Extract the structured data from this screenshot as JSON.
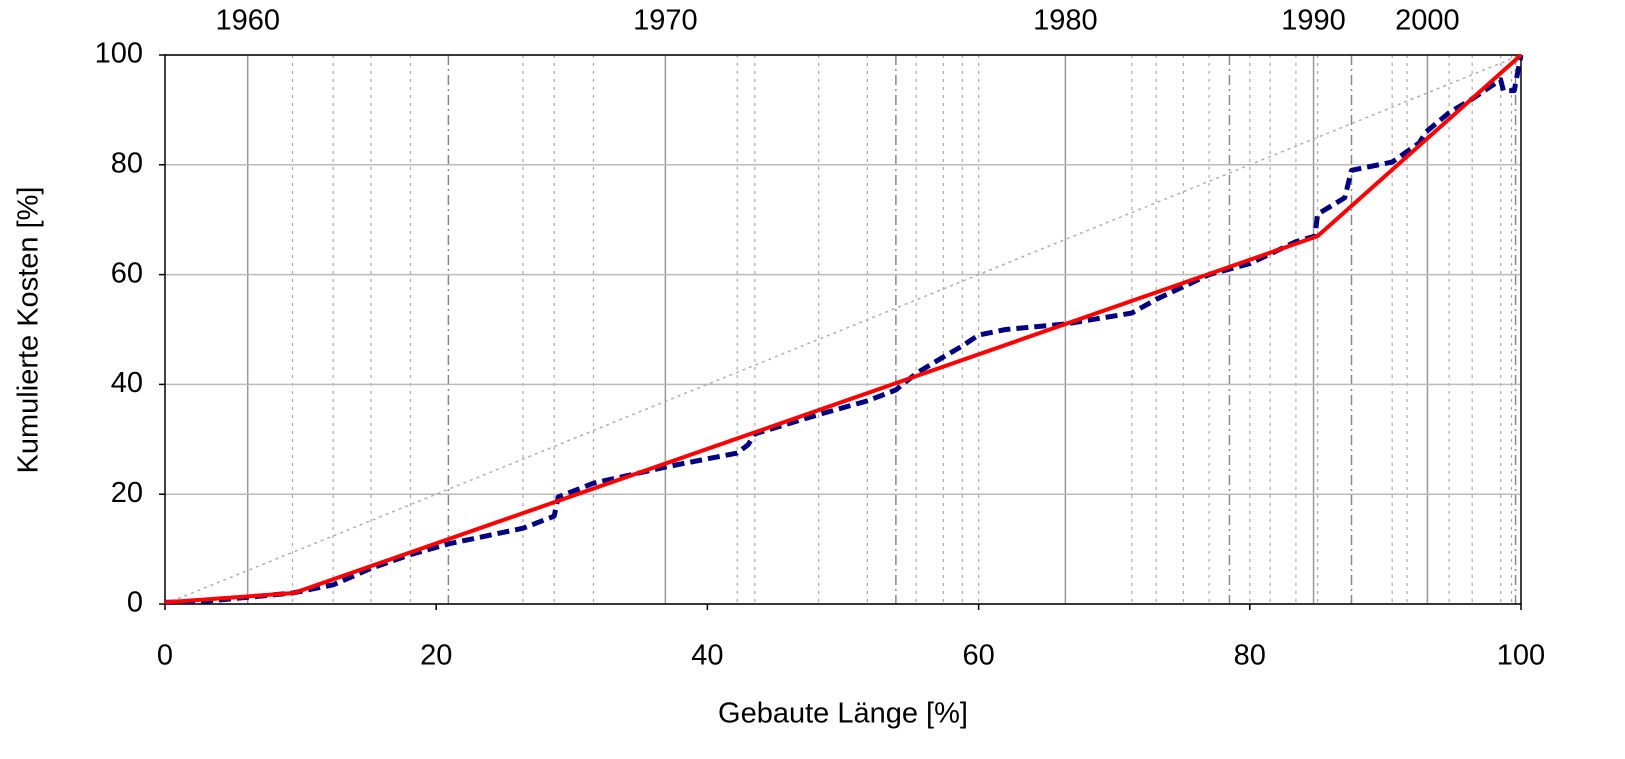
{
  "chart_data": {
    "type": "line",
    "x_label": "Gebaute Länge [%]",
    "y_label": "Kumulierte Kosten [%]",
    "xlim": [
      0,
      100
    ],
    "ylim": [
      0,
      100
    ],
    "xticks": [
      0,
      20,
      40,
      60,
      80,
      100
    ],
    "yticks": [
      0,
      20,
      40,
      60,
      80,
      100
    ],
    "grid": true,
    "x2ticks": [
      {
        "value": 6.1,
        "label": "1960"
      },
      {
        "value": 36.9,
        "label": "1970"
      },
      {
        "value": 66.4,
        "label": "1980"
      },
      {
        "value": 84.7,
        "label": "1990"
      },
      {
        "value": 93.1,
        "label": "2000"
      }
    ],
    "x2_midlines": [
      20.9,
      53.9,
      78.5,
      87.5,
      99.6
    ],
    "x2_minorlines": [
      9.4,
      12.4,
      15.2,
      18.1,
      26.4,
      28.7,
      31.6,
      42.2,
      43.5,
      48.2,
      51.8,
      55.4,
      57.4,
      58.8,
      60.0,
      71.3,
      73.1,
      75.1,
      77.0,
      80.0,
      81.5,
      83.4,
      85.0,
      90.5,
      91.6,
      94.7,
      96.4,
      98.5,
      99.3
    ],
    "series": [
      {
        "color": "#b0b0b0",
        "style": "dotted",
        "width": 1.5,
        "x": [
          0,
          100
        ],
        "values": [
          0,
          100
        ]
      },
      {
        "color": "#000080",
        "style": "dashed",
        "width": 5,
        "x": [
          0,
          3,
          6,
          9.4,
          12.4,
          15.2,
          18.1,
          21,
          26.4,
          28.7,
          29,
          31.6,
          37,
          42.2,
          43,
          43.5,
          48.2,
          51.8,
          53.9,
          55.4,
          57.4,
          58.8,
          60,
          62,
          66.4,
          71.3,
          73.1,
          77,
          80,
          83.4,
          84.8,
          85,
          87,
          87.5,
          90.5,
          92.5,
          93,
          94.7,
          96.4,
          98.5,
          98.7,
          99.5,
          100
        ],
        "values": [
          0.3,
          0.5,
          1.2,
          2,
          3.5,
          6.5,
          9,
          11,
          13.8,
          16,
          19.5,
          22,
          25,
          27.5,
          29,
          31,
          34.5,
          37,
          39,
          42,
          45,
          47,
          49,
          50,
          51,
          53,
          55.5,
          60,
          62,
          66,
          67,
          71,
          74,
          79,
          80.5,
          84,
          86,
          89.5,
          92,
          95.5,
          93.5,
          93.5,
          100
        ]
      },
      {
        "color": "#ff0000",
        "style": "solid",
        "width": 4,
        "x": [
          0,
          9.5,
          85,
          100
        ],
        "values": [
          0.3,
          2,
          67,
          100
        ]
      }
    ]
  }
}
